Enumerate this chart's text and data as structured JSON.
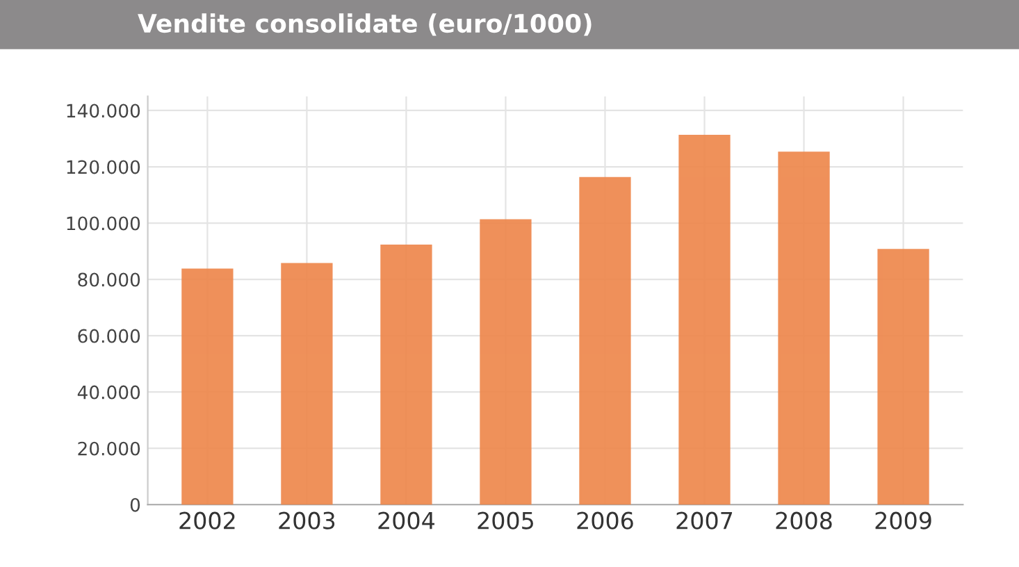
{
  "chart_data": {
    "type": "bar",
    "title": "Vendite consolidate (euro/1000)",
    "categories": [
      "2002",
      "2003",
      "2004",
      "2005",
      "2006",
      "2007",
      "2008",
      "2009"
    ],
    "values": [
      83500,
      85500,
      92000,
      101000,
      116000,
      131000,
      125000,
      90500
    ],
    "color": "#ee8549",
    "ylim": [
      0,
      145000
    ],
    "yticks": [
      0,
      {
        "value": 20000,
        "label": "20.000"
      },
      {
        "value": 40000,
        "label": "40.000"
      },
      {
        "value": 60000,
        "label": "60.000"
      },
      {
        "value": 80000,
        "label": "80.000"
      },
      {
        "value": 100000,
        "label": "100.000"
      },
      {
        "value": 120000,
        "label": "120.000"
      },
      {
        "value": 140000,
        "label": "140.000"
      }
    ],
    "grid": true
  }
}
